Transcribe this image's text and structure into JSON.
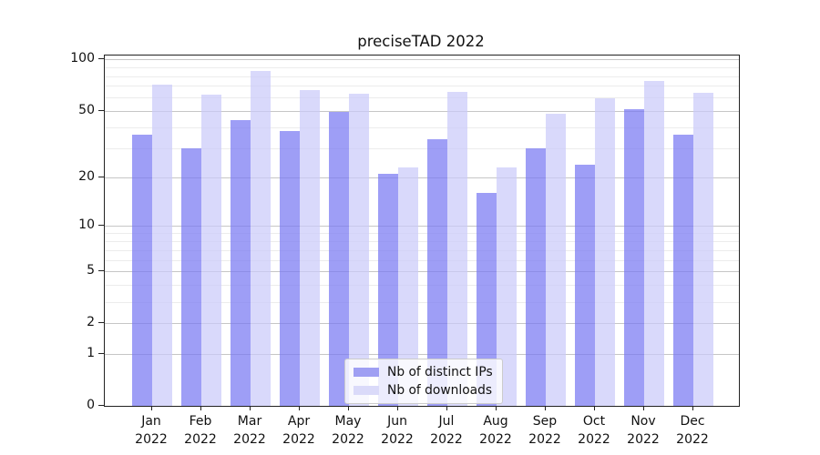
{
  "title": "preciseTAD 2022",
  "chart_data": {
    "type": "bar",
    "title": "preciseTAD 2022",
    "categories": [
      "Jan",
      "Feb",
      "Mar",
      "Apr",
      "May",
      "Jun",
      "Jul",
      "Aug",
      "Sep",
      "Oct",
      "Nov",
      "Dec"
    ],
    "year_label": "2022",
    "series": [
      {
        "name": "Nb of distinct IPs",
        "color": "#9f9ff3",
        "fill": "rgba(121,121,242,0.72)",
        "values": [
          36,
          30,
          44,
          38,
          49,
          21,
          34,
          16,
          30,
          24,
          51,
          36
        ]
      },
      {
        "name": "Nb of downloads",
        "color": "#dadaf9",
        "fill": "rgba(203,203,249,0.72)",
        "values": [
          71,
          62,
          86,
          66,
          63,
          23,
          65,
          23,
          48,
          59,
          75,
          64
        ]
      }
    ],
    "yscale": "log1p",
    "ylim": [
      0,
      105
    ],
    "yticks": [
      0,
      1,
      2,
      5,
      10,
      20,
      50,
      100
    ],
    "minor_yticks": [
      3,
      4,
      6,
      7,
      8,
      9,
      30,
      40,
      60,
      70,
      80,
      90
    ],
    "xlabel": "",
    "ylabel": "",
    "grid": "on",
    "legend_position": "lower center"
  }
}
